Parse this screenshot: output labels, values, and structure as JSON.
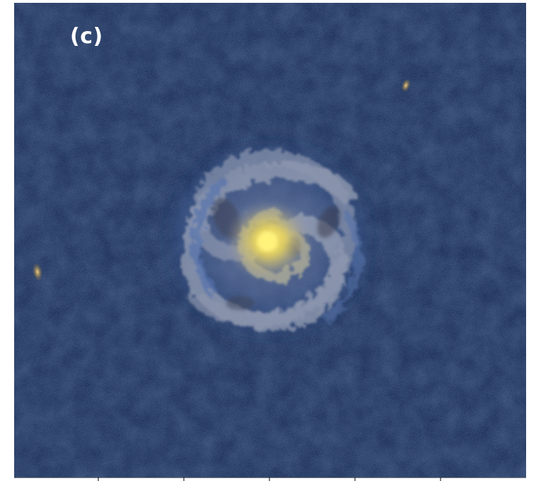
{
  "panel": {
    "label": "(c)"
  },
  "colors": {
    "background": "#0f2447",
    "core": "#f2e24c",
    "arms": "#9aa3b8",
    "outer_glow": "#3a5c96",
    "knot": "#d8b070"
  },
  "axis": {
    "tick_count": 5
  }
}
